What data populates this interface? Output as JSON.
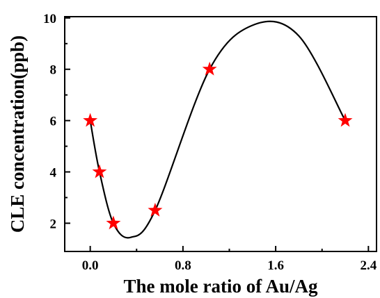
{
  "chart_data": {
    "type": "scatter",
    "xlabel": "The mole ratio of Au/Ag",
    "ylabel": "CLE concentration(ppb)",
    "xlim": [
      -0.22,
      2.47
    ],
    "ylim": [
      0.9,
      10.05
    ],
    "xticks": [
      0.0,
      0.8,
      1.6,
      2.4
    ],
    "xtick_labels": [
      "0.0",
      "0.8",
      "1.6",
      "2.4"
    ],
    "yticks": [
      2,
      4,
      6,
      8,
      10
    ],
    "ytick_labels": [
      "2",
      "4",
      "6",
      "8",
      "10"
    ],
    "grid": false,
    "legend": "none",
    "series": [
      {
        "marker": "star",
        "color": "#ff0000",
        "points": [
          {
            "x": 0.0,
            "y": 6.0
          },
          {
            "x": 0.08,
            "y": 4.0
          },
          {
            "x": 0.2,
            "y": 2.0
          },
          {
            "x": 0.56,
            "y": 2.5
          },
          {
            "x": 1.03,
            "y": 8.0
          },
          {
            "x": 2.2,
            "y": 6.0
          }
        ]
      }
    ],
    "fit_curve": {
      "style": "smooth",
      "color": "#000000",
      "points": [
        {
          "x": 0.0,
          "y": 6.0
        },
        {
          "x": 0.08,
          "y": 4.0
        },
        {
          "x": 0.2,
          "y": 2.0
        },
        {
          "x": 0.35,
          "y": 1.45
        },
        {
          "x": 0.56,
          "y": 2.5
        },
        {
          "x": 1.03,
          "y": 8.0
        },
        {
          "x": 1.42,
          "y": 9.75
        },
        {
          "x": 1.8,
          "y": 9.3
        },
        {
          "x": 2.2,
          "y": 6.0
        }
      ]
    }
  }
}
